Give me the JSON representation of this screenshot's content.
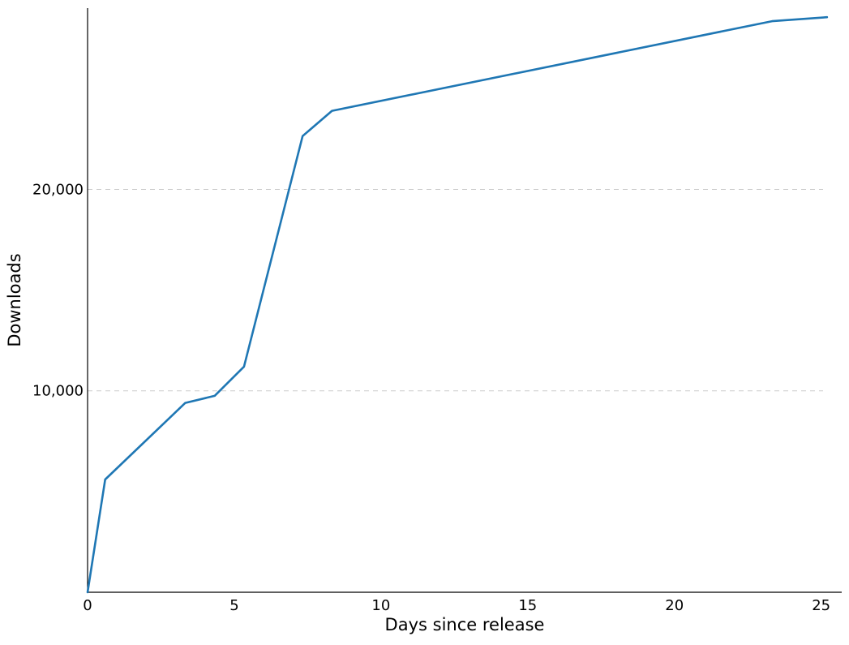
{
  "chart_data": {
    "type": "line",
    "title": "",
    "xlabel": "Days since release",
    "ylabel": "Downloads",
    "xlim": [
      0,
      25.7
    ],
    "ylim": [
      0,
      29000
    ],
    "xticks": [
      0,
      5,
      10,
      15,
      20,
      25
    ],
    "xtick_labels": [
      "0",
      "5",
      "10",
      "15",
      "20",
      "25"
    ],
    "yticks": [
      10000,
      20000
    ],
    "ytick_labels": [
      "10,000",
      "20,000"
    ],
    "grid": "horizontal dashed",
    "legend": "none",
    "series": [
      {
        "color": "#1f77b4",
        "x": [
          0,
          0.6,
          3.33,
          4.33,
          5.33,
          7.33,
          8.33,
          23.33,
          25.2
        ],
        "y": [
          0,
          5600,
          9400,
          9750,
          11200,
          22650,
          23900,
          28350,
          28550
        ]
      }
    ]
  }
}
